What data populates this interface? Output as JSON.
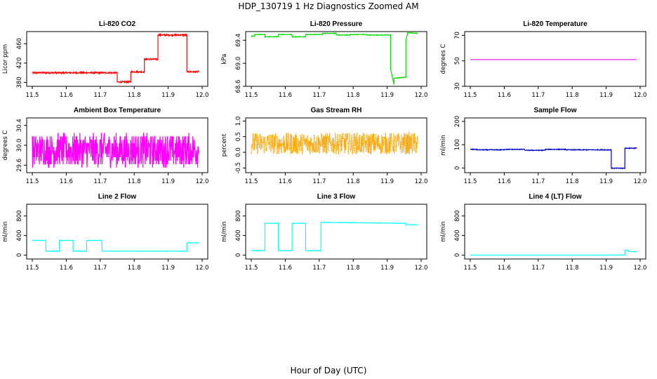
{
  "figure": {
    "title": "HDP_130719  1 Hz Diagnostics Zoomed AM",
    "xlabel": "Hour of Day (UTC)"
  },
  "chart_data": [
    {
      "type": "line",
      "title": "Li-820 CO2",
      "ylabel": "Licor ppm",
      "color": "#ff0000",
      "xlim": [
        11.5,
        12.0
      ],
      "ylim": [
        372,
        485
      ],
      "xticks": [
        "11.5",
        "11.6",
        "11.7",
        "11.8",
        "11.9",
        "12.0"
      ],
      "yticks": [
        "380",
        "420",
        "460"
      ],
      "noise": 1.5,
      "series": [
        {
          "name": "CO2",
          "x": [
            11.5,
            11.75,
            11.75,
            11.79,
            11.79,
            11.83,
            11.83,
            11.87,
            11.87,
            11.955,
            11.955,
            11.99
          ],
          "y": [
            400,
            400,
            381,
            381,
            402,
            402,
            428,
            428,
            478,
            478,
            402,
            402
          ]
        }
      ]
    },
    {
      "type": "line",
      "title": "Li-820 Pressure",
      "ylabel": "kPa",
      "color": "#00dd00",
      "xlim": [
        11.5,
        12.0
      ],
      "ylim": [
        68.6,
        69.55
      ],
      "xticks": [
        "11.5",
        "11.6",
        "11.7",
        "11.8",
        "11.9",
        "12.0"
      ],
      "yticks": [
        "68.6",
        "69.0",
        "69.4"
      ],
      "noise": 0.005,
      "series": [
        {
          "name": "Pressure",
          "x": [
            11.5,
            11.51,
            11.51,
            11.54,
            11.54,
            11.58,
            11.58,
            11.62,
            11.62,
            11.66,
            11.66,
            11.71,
            11.71,
            11.75,
            11.75,
            11.79,
            11.79,
            11.84,
            11.84,
            11.91,
            11.91,
            11.92,
            11.92,
            11.955,
            11.955,
            11.96,
            11.96,
            11.99
          ],
          "y": [
            69.47,
            69.47,
            69.5,
            69.5,
            69.46,
            69.46,
            69.5,
            69.5,
            69.46,
            69.46,
            69.5,
            69.5,
            69.52,
            69.52,
            69.49,
            69.49,
            69.5,
            69.5,
            69.49,
            69.49,
            68.9,
            68.63,
            68.74,
            68.76,
            69.4,
            69.52,
            69.53,
            69.52
          ]
        }
      ]
    },
    {
      "type": "line",
      "title": "Li-820 Temperature",
      "ylabel": "degrees C",
      "color": "#ee22ee",
      "xlim": [
        11.5,
        12.0
      ],
      "ylim": [
        30,
        73
      ],
      "xticks": [
        "11.5",
        "11.6",
        "11.7",
        "11.8",
        "11.9",
        "12.0"
      ],
      "yticks": [
        "30",
        "50",
        "70"
      ],
      "noise": 0,
      "series": [
        {
          "name": "Temperature",
          "x": [
            11.5,
            11.99
          ],
          "y": [
            51,
            51
          ]
        }
      ]
    },
    {
      "type": "line",
      "title": "Ambient Box Temperature",
      "ylabel": "degrees C",
      "color": "#ff00ff",
      "xlim": [
        11.5,
        12.0
      ],
      "ylim": [
        29.45,
        30.55
      ],
      "xticks": [
        "11.5",
        "11.6",
        "11.7",
        "11.8",
        "11.9",
        "12.0"
      ],
      "yticks": [
        "29.6",
        "30.0",
        "30.4"
      ],
      "noise": 0.33,
      "quantize": 0.07,
      "series": [
        {
          "name": "Box Temperature",
          "x": [
            11.5,
            11.99
          ],
          "y": [
            29.9,
            29.9
          ]
        }
      ]
    },
    {
      "type": "line",
      "title": "Gas Stream RH",
      "ylabel": "percent",
      "color": "#ffa500",
      "xlim": [
        11.5,
        12.0
      ],
      "ylim": [
        -0.65,
        1.1
      ],
      "xticks": [
        "11.5",
        "11.6",
        "11.7",
        "11.8",
        "11.9",
        "12.0"
      ],
      "yticks": [
        "-0.5",
        "0.0",
        "0.5",
        "1.0"
      ],
      "noise": 0.35,
      "dotted": true,
      "series": [
        {
          "name": "RH",
          "x": [
            11.5,
            11.99
          ],
          "y": [
            0.28,
            0.28
          ]
        }
      ]
    },
    {
      "type": "line",
      "title": "Sample Flow",
      "ylabel": "ml/min",
      "color": "#0000cc",
      "xlim": [
        11.5,
        12.0
      ],
      "ylim": [
        -20,
        215
      ],
      "xticks": [
        "11.5",
        "11.6",
        "11.7",
        "11.8",
        "11.9",
        "12.0"
      ],
      "yticks": [
        "0",
        "100",
        "200"
      ],
      "noise": 1.5,
      "series": [
        {
          "name": "Sample Flow",
          "x": [
            11.5,
            11.52,
            11.52,
            11.6,
            11.6,
            11.66,
            11.66,
            11.72,
            11.72,
            11.78,
            11.78,
            11.835,
            11.835,
            11.915,
            11.915,
            11.955,
            11.955,
            11.99
          ],
          "y": [
            80,
            80,
            78,
            78,
            80,
            80,
            76,
            76,
            80,
            80,
            78,
            78,
            78,
            78,
            -1,
            -1,
            85,
            85
          ]
        }
      ]
    },
    {
      "type": "line",
      "title": "Line 2 Flow",
      "ylabel": "ml/min",
      "color": "#00ffff",
      "xlim": [
        11.5,
        12.0
      ],
      "ylim": [
        -80,
        1040
      ],
      "xticks": [
        "11.5",
        "11.6",
        "11.7",
        "11.8",
        "11.9",
        "12.0"
      ],
      "yticks": [
        "0",
        "400",
        "800"
      ],
      "noise": 3,
      "series": [
        {
          "name": "Line 2",
          "x": [
            11.5,
            11.54,
            11.54,
            11.58,
            11.58,
            11.62,
            11.62,
            11.66,
            11.66,
            11.705,
            11.705,
            11.955,
            11.955,
            11.96,
            11.96,
            11.99
          ],
          "y": [
            300,
            300,
            80,
            80,
            300,
            300,
            80,
            80,
            300,
            300,
            80,
            80,
            240,
            260,
            250,
            250
          ]
        }
      ]
    },
    {
      "type": "line",
      "title": "Line 3 Flow",
      "ylabel": "ml/min",
      "color": "#00ffff",
      "xlim": [
        11.5,
        12.0
      ],
      "ylim": [
        -80,
        1040
      ],
      "xticks": [
        "11.5",
        "11.6",
        "11.7",
        "11.8",
        "11.9",
        "12.0"
      ],
      "yticks": [
        "0",
        "400",
        "800"
      ],
      "noise": 3,
      "series": [
        {
          "name": "Line 3",
          "x": [
            11.5,
            11.54,
            11.54,
            11.58,
            11.58,
            11.62,
            11.62,
            11.66,
            11.66,
            11.705,
            11.705,
            11.955,
            11.955,
            11.99
          ],
          "y": [
            90,
            90,
            650,
            650,
            90,
            90,
            650,
            650,
            90,
            90,
            670,
            650,
            620,
            620
          ]
        }
      ]
    },
    {
      "type": "line",
      "title": "Line 4 (LT) Flow",
      "ylabel": "ml/min",
      "color": "#00ffff",
      "xlim": [
        11.5,
        12.0
      ],
      "ylim": [
        -80,
        1040
      ],
      "xticks": [
        "11.5",
        "11.6",
        "11.7",
        "11.8",
        "11.9",
        "12.0"
      ],
      "yticks": [
        "0",
        "400",
        "800"
      ],
      "noise": 1,
      "series": [
        {
          "name": "Line 4",
          "x": [
            11.5,
            11.955,
            11.955,
            11.965,
            11.965,
            11.99
          ],
          "y": [
            0,
            0,
            100,
            100,
            70,
            70
          ]
        }
      ]
    }
  ]
}
